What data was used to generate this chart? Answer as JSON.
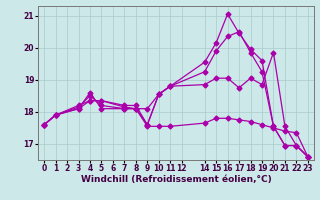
{
  "background_color": "#cde8e8",
  "grid_color": "#aacccc",
  "line_color": "#aa00aa",
  "marker": "D",
  "marker_size": 2.5,
  "linewidth": 0.9,
  "xlim": [
    -0.5,
    23.5
  ],
  "ylim": [
    16.5,
    21.3
  ],
  "yticks": [
    17,
    18,
    19,
    20,
    21
  ],
  "xticks": [
    0,
    1,
    2,
    3,
    4,
    5,
    6,
    7,
    8,
    9,
    10,
    11,
    12,
    14,
    15,
    16,
    17,
    18,
    19,
    20,
    21,
    22,
    23
  ],
  "xlabel": "Windchill (Refroidissement éolien,°C)",
  "xlabel_fontsize": 6.5,
  "tick_fontsize": 5.5,
  "series": [
    {
      "x": [
        0,
        1,
        3,
        4,
        5,
        7,
        8,
        9,
        10,
        11,
        14,
        15,
        16,
        17,
        18,
        19,
        20,
        21,
        22,
        23
      ],
      "y": [
        17.6,
        17.9,
        18.1,
        18.6,
        18.1,
        18.1,
        18.1,
        18.1,
        18.55,
        18.8,
        19.55,
        20.15,
        21.05,
        20.45,
        19.95,
        19.6,
        17.55,
        16.95,
        16.95,
        16.6
      ]
    },
    {
      "x": [
        0,
        1,
        3,
        4,
        5,
        7,
        8,
        9,
        10,
        11,
        14,
        15,
        16,
        17,
        18,
        19,
        20,
        21,
        22,
        23
      ],
      "y": [
        17.6,
        17.9,
        18.15,
        18.5,
        18.2,
        18.1,
        18.1,
        17.6,
        18.55,
        18.8,
        19.25,
        19.9,
        20.35,
        20.5,
        19.85,
        19.25,
        17.55,
        16.95,
        16.95,
        16.6
      ]
    },
    {
      "x": [
        0,
        1,
        3,
        4,
        5,
        7,
        8,
        9,
        10,
        11,
        14,
        15,
        16,
        17,
        18,
        19,
        20,
        21,
        22,
        23
      ],
      "y": [
        17.6,
        17.9,
        18.2,
        18.35,
        18.35,
        18.2,
        18.2,
        17.6,
        18.55,
        18.8,
        18.85,
        19.05,
        19.05,
        18.75,
        19.05,
        18.85,
        19.85,
        17.55,
        16.95,
        16.6
      ]
    },
    {
      "x": [
        0,
        1,
        3,
        4,
        5,
        7,
        8,
        9,
        10,
        11,
        14,
        15,
        16,
        17,
        18,
        19,
        20,
        21,
        22,
        23
      ],
      "y": [
        17.6,
        17.9,
        18.1,
        18.35,
        18.35,
        18.15,
        18.1,
        17.55,
        17.55,
        17.55,
        17.65,
        17.8,
        17.8,
        17.75,
        17.7,
        17.6,
        17.5,
        17.4,
        17.35,
        16.6
      ]
    }
  ]
}
